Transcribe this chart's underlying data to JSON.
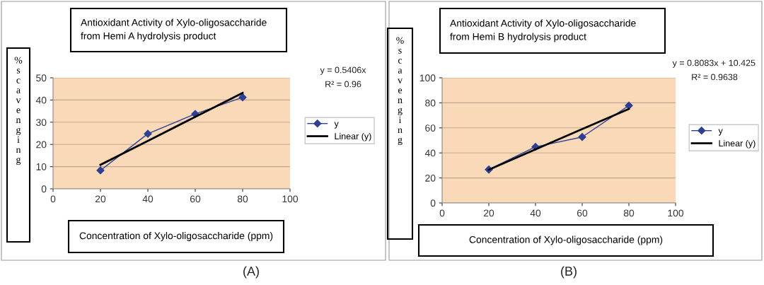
{
  "chart_data": [
    {
      "type": "line",
      "title": "Antioxidant Activity of Xylo-oligosaccharide\nfrom Hemi A hydrolysis product",
      "xlabel": "Concentration of Xylo-oligosaccharide (ppm)",
      "ylabel": "% scavenging",
      "x": [
        20,
        40,
        60,
        80
      ],
      "series": [
        {
          "name": "y",
          "color": "#2e3f94",
          "values": [
            8.3,
            24.8,
            33.7,
            41.2
          ],
          "marker": "diamond"
        },
        {
          "name": "Linear (y)",
          "color": "#000000",
          "values": [
            10.8,
            21.6,
            32.4,
            43.2
          ],
          "marker": "none"
        }
      ],
      "xlim": [
        0,
        100
      ],
      "xticks": [
        0,
        20,
        40,
        60,
        80,
        100
      ],
      "ylim": [
        0,
        50
      ],
      "yticks": [
        0,
        10,
        20,
        30,
        40,
        50
      ],
      "grid": "y",
      "legend": "right",
      "annotations": [
        "y = 0.5406x",
        "R² = 0.96",
        "(A)"
      ]
    },
    {
      "type": "line",
      "title": "Antioxidant Activity of Xylo-oligosaccharide\nfrom Hemi B hydrolysis product",
      "xlabel": "Concentration of Xylo-oligosaccharide (ppm)",
      "ylabel": "% scavenging",
      "x": [
        20,
        40,
        60,
        80
      ],
      "series": [
        {
          "name": "y",
          "color": "#2e3f94",
          "values": [
            26.7,
            44.8,
            52.7,
            77.8
          ],
          "marker": "diamond"
        },
        {
          "name": "Linear (y)",
          "color": "#000000",
          "values": [
            26.6,
            42.8,
            59.0,
            75.1
          ],
          "marker": "none"
        }
      ],
      "xlim": [
        0,
        100
      ],
      "xticks": [
        0,
        20,
        40,
        60,
        80,
        100
      ],
      "ylim": [
        0,
        100
      ],
      "yticks": [
        0,
        20,
        40,
        60,
        80,
        100
      ],
      "grid": "y",
      "legend": "right",
      "annotations": [
        "y = 0.8083x + 10.425",
        "R² = 0.9638",
        "(B)"
      ]
    }
  ]
}
